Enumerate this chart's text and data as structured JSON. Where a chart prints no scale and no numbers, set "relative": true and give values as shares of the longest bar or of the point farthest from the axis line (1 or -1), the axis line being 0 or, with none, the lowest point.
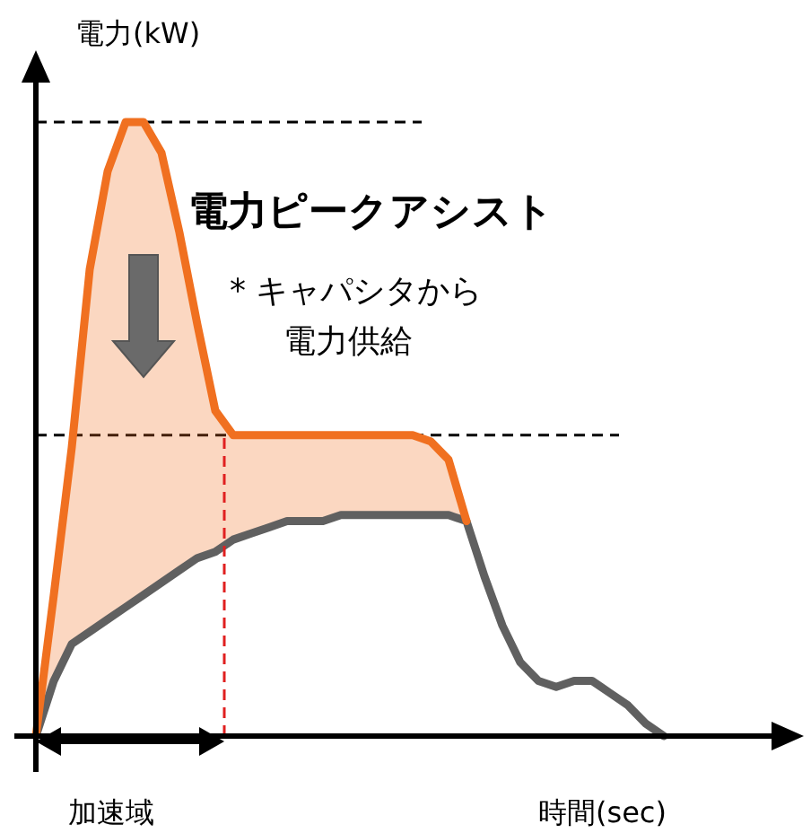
{
  "chart_data": {
    "type": "line",
    "relative": true,
    "xlabel": "時間(sec)",
    "ylabel": "電力(kW)",
    "categories": [
      null,
      null,
      null,
      null,
      null,
      null,
      null,
      null,
      null,
      null,
      null,
      null,
      null,
      null,
      null,
      null,
      null,
      null,
      null,
      null,
      null,
      null,
      null,
      null,
      null,
      null,
      null,
      null,
      null,
      null,
      null,
      null,
      null,
      null,
      null,
      null,
      null
    ],
    "series": [
      {
        "color": "#f07020",
        "values": [
          0,
          0.23,
          0.47,
          0.76,
          0.92,
          1.0,
          1.0,
          0.95,
          0.82,
          0.67,
          0.53,
          0.49,
          0.49,
          0.49,
          0.49,
          0.49,
          0.49,
          0.49,
          0.49,
          0.49,
          0.49,
          0.49,
          0.48,
          0.45,
          0.35,
          null,
          null,
          null,
          null,
          null,
          null,
          null,
          null,
          null,
          null,
          null,
          null
        ]
      },
      {
        "color": "#606060",
        "values": [
          0,
          0.09,
          0.15,
          0.17,
          0.19,
          0.21,
          0.23,
          0.25,
          0.27,
          0.29,
          0.3,
          0.32,
          0.33,
          0.34,
          0.35,
          0.35,
          0.35,
          0.36,
          0.36,
          0.36,
          0.36,
          0.36,
          0.36,
          0.36,
          0.35,
          0.26,
          0.18,
          0.12,
          0.09,
          0.08,
          0.09,
          0.09,
          0.07,
          0.05,
          0.02,
          0,
          null
        ]
      }
    ],
    "ref_lines": [
      {
        "axis": "y",
        "value": 1.0,
        "color": "#000000",
        "line_style": "dashed"
      },
      {
        "axis": "y",
        "value": 0.49,
        "color": "#000000",
        "line_style": "dashed"
      }
    ],
    "annotations": [
      "電力ピークアシスト",
      "* キャパシタから",
      "電力供給",
      "加速域"
    ]
  }
}
